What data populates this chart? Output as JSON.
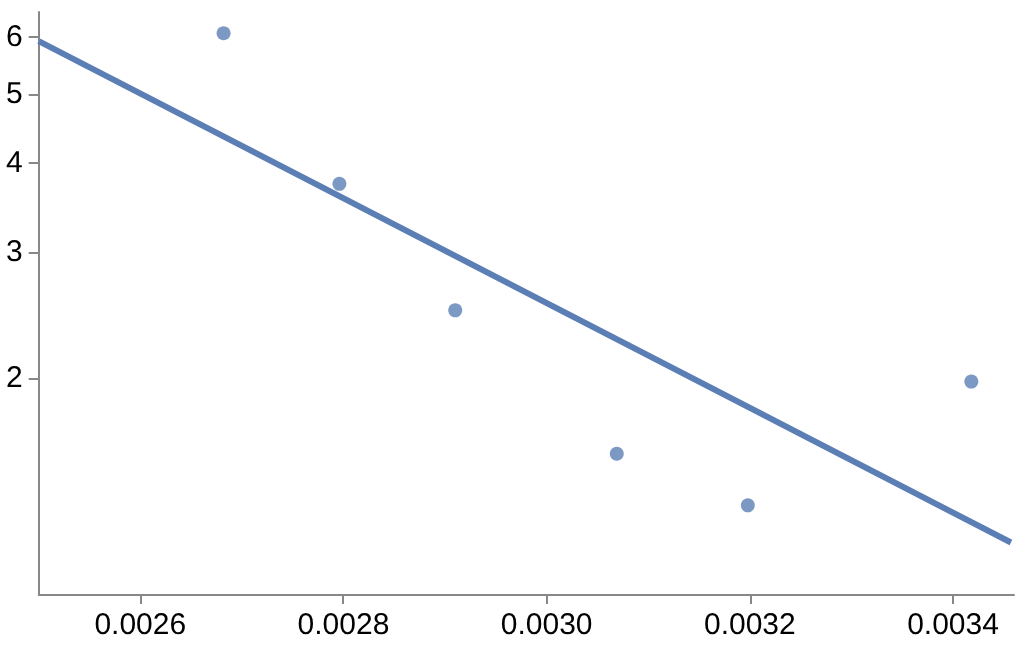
{
  "chart_data": {
    "type": "scatter",
    "log": "y",
    "grid": false,
    "xlim": [
      0.0025,
      0.00346
    ],
    "ylim": [
      1,
      6.5
    ],
    "xticks": [
      {
        "value": 0.0026,
        "label": "0.0026"
      },
      {
        "value": 0.0028,
        "label": "0.0028"
      },
      {
        "value": 0.003,
        "label": "0.0030"
      },
      {
        "value": 0.0032,
        "label": "0.0032"
      },
      {
        "value": 0.0034,
        "label": "0.0034"
      }
    ],
    "yticks": [
      2,
      3,
      4,
      5,
      6
    ],
    "series": [
      {
        "marker": "circle",
        "color": "#5b7fb5",
        "x": [
          0.002682,
          0.002796,
          0.00291,
          0.003069,
          0.003198,
          0.003418
        ],
        "values": [
          6.07,
          3.74,
          2.49,
          1.57,
          1.33,
          1.98
        ]
      },
      {
        "type": "line",
        "marker": "none",
        "color": "#5b7fb5",
        "x": [
          0.0025,
          0.003457
        ],
        "values": [
          5.92,
          1.18
        ]
      }
    ]
  }
}
